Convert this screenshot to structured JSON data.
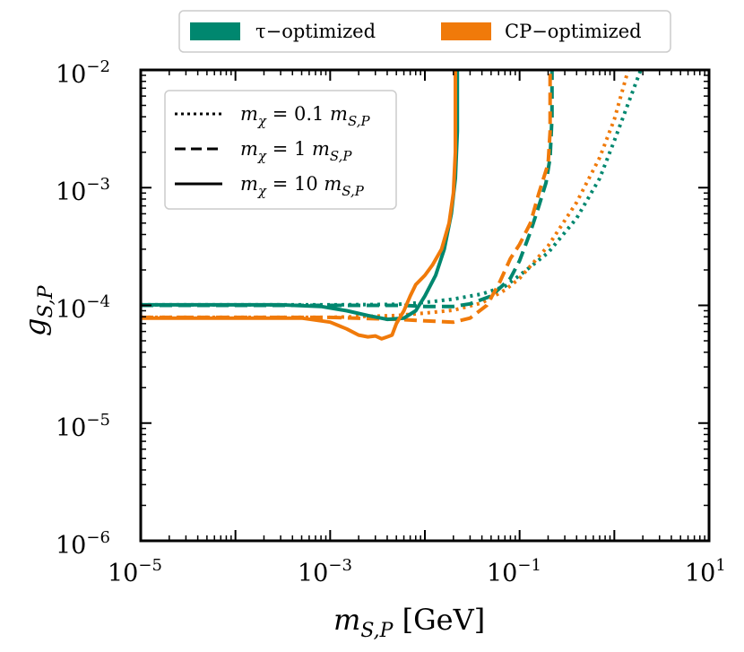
{
  "colors": {
    "tau": "#00876f",
    "cp": "#f07a0a",
    "axis": "#000000"
  },
  "chart_data": {
    "type": "line",
    "xscale": "log",
    "yscale": "log",
    "xlim": [
      1e-05,
      10
    ],
    "ylim": [
      1e-06,
      0.01
    ],
    "xlabel": "m_S,P [GeV]",
    "xlabel_parts": {
      "main": "m",
      "sub": "S,P",
      "unit": " [GeV]"
    },
    "ylabel": "g_S,P",
    "ylabel_parts": {
      "main": "g",
      "sub": "S,P"
    },
    "x_ticks": [
      {
        "base": "10",
        "exp": "−5"
      },
      {
        "base": "10",
        "exp": "−3"
      },
      {
        "base": "10",
        "exp": "−1"
      },
      {
        "base": "10",
        "exp": "1"
      }
    ],
    "y_ticks": [
      {
        "base": "10",
        "exp": "−2"
      },
      {
        "base": "10",
        "exp": "−3"
      },
      {
        "base": "10",
        "exp": "−4"
      },
      {
        "base": "10",
        "exp": "−5"
      },
      {
        "base": "10",
        "exp": "−6"
      }
    ],
    "color_legend": [
      {
        "label": "τ−optimized",
        "color_key": "tau"
      },
      {
        "label": "CP−optimized",
        "color_key": "cp"
      }
    ],
    "style_legend": [
      {
        "label_pre": "m",
        "label_sub": "χ",
        "label_mid": " = 0.1 ",
        "label_post": "m",
        "label_post_sub": "S,P",
        "dash": "dotted"
      },
      {
        "label_pre": "m",
        "label_sub": "χ",
        "label_mid": " = 1 ",
        "label_post": "m",
        "label_post_sub": "S,P",
        "dash": "dashed"
      },
      {
        "label_pre": "m",
        "label_sub": "χ",
        "label_mid": " = 10 ",
        "label_post": "m",
        "label_post_sub": "S,P",
        "dash": "solid"
      }
    ],
    "series": [
      {
        "name": "τ-optimized, m_χ = 0.1 m_S,P",
        "color_key": "tau",
        "dash": "dotted",
        "points": [
          [
            1e-05,
            0.000101
          ],
          [
            0.001,
            0.000101
          ],
          [
            0.005,
            0.000102
          ],
          [
            0.01,
            0.000106
          ],
          [
            0.02,
            0.000113
          ],
          [
            0.04,
            0.000125
          ],
          [
            0.07,
            0.000145
          ],
          [
            0.1,
            0.00018
          ],
          [
            0.2,
            0.00028
          ],
          [
            0.4,
            0.00055
          ],
          [
            0.7,
            0.0012
          ],
          [
            1.0,
            0.0025
          ],
          [
            1.5,
            0.006
          ],
          [
            1.9,
            0.01
          ]
        ]
      },
      {
        "name": "CP-optimized, m_χ = 0.1 m_S,P",
        "color_key": "cp",
        "dash": "dotted",
        "points": [
          [
            1e-05,
            7.9e-05
          ],
          [
            0.001,
            7.9e-05
          ],
          [
            0.005,
            8.2e-05
          ],
          [
            0.01,
            8.6e-05
          ],
          [
            0.02,
            9.1e-05
          ],
          [
            0.04,
            0.000105
          ],
          [
            0.07,
            0.000135
          ],
          [
            0.1,
            0.00017
          ],
          [
            0.2,
            0.00032
          ],
          [
            0.4,
            0.00075
          ],
          [
            0.7,
            0.0018
          ],
          [
            1.0,
            0.0038
          ],
          [
            1.4,
            0.01
          ]
        ]
      },
      {
        "name": "τ-optimized, m_χ = 1 m_S,P",
        "color_key": "tau",
        "dash": "dashed",
        "points": [
          [
            1e-05,
            0.0001
          ],
          [
            0.001,
            0.0001
          ],
          [
            0.006,
            0.0001
          ],
          [
            0.01,
            9.8e-05
          ],
          [
            0.02,
            9.8e-05
          ],
          [
            0.03,
            0.000103
          ],
          [
            0.05,
            0.00012
          ],
          [
            0.08,
            0.00017
          ],
          [
            0.1,
            0.00024
          ],
          [
            0.13,
            0.00042
          ],
          [
            0.16,
            0.0007
          ],
          [
            0.19,
            0.0011
          ],
          [
            0.21,
            0.0018
          ],
          [
            0.22,
            0.004
          ],
          [
            0.22,
            0.01
          ]
        ]
      },
      {
        "name": "CP-optimized, m_χ = 1 m_S,P",
        "color_key": "cp",
        "dash": "dashed",
        "points": [
          [
            1e-05,
            7.9e-05
          ],
          [
            0.001,
            7.9e-05
          ],
          [
            0.005,
            7.6e-05
          ],
          [
            0.01,
            7.4e-05
          ],
          [
            0.02,
            7.2e-05
          ],
          [
            0.03,
            7.8e-05
          ],
          [
            0.045,
            0.0001
          ],
          [
            0.06,
            0.00015
          ],
          [
            0.08,
            0.00025
          ],
          [
            0.1,
            0.00033
          ],
          [
            0.13,
            0.0005
          ],
          [
            0.16,
            0.0009
          ],
          [
            0.2,
            0.0016
          ],
          [
            0.21,
            0.003
          ],
          [
            0.21,
            0.01
          ]
        ]
      },
      {
        "name": "τ-optimized, m_χ = 10 m_S,P",
        "color_key": "tau",
        "dash": "solid",
        "points": [
          [
            1e-05,
            0.000101
          ],
          [
            0.0003,
            0.000101
          ],
          [
            0.0008,
            9.8e-05
          ],
          [
            0.0015,
            9e-05
          ],
          [
            0.0025,
            8.2e-05
          ],
          [
            0.004,
            7.6e-05
          ],
          [
            0.006,
            7.8e-05
          ],
          [
            0.008,
            9e-05
          ],
          [
            0.01,
            0.00012
          ],
          [
            0.013,
            0.00018
          ],
          [
            0.016,
            0.0003
          ],
          [
            0.019,
            0.0006
          ],
          [
            0.021,
            0.0012
          ],
          [
            0.022,
            0.003
          ],
          [
            0.022,
            0.01
          ]
        ]
      },
      {
        "name": "CP-optimized, m_χ = 10 m_S,P",
        "color_key": "cp",
        "dash": "solid",
        "points": [
          [
            1e-05,
            7.8e-05
          ],
          [
            0.0005,
            7.8e-05
          ],
          [
            0.001,
            7.2e-05
          ],
          [
            0.0015,
            6.3e-05
          ],
          [
            0.002,
            5.6e-05
          ],
          [
            0.0025,
            5.4e-05
          ],
          [
            0.003,
            5.5e-05
          ],
          [
            0.0035,
            5.2e-05
          ],
          [
            0.004,
            5.4e-05
          ],
          [
            0.0045,
            5.6e-05
          ],
          [
            0.005,
            7e-05
          ],
          [
            0.006,
            9e-05
          ],
          [
            0.007,
            0.00012
          ],
          [
            0.008,
            0.00015
          ],
          [
            0.01,
            0.00018
          ],
          [
            0.012,
            0.00022
          ],
          [
            0.015,
            0.0003
          ],
          [
            0.018,
            0.0005
          ],
          [
            0.02,
            0.0009
          ],
          [
            0.021,
            0.002
          ],
          [
            0.021,
            0.01
          ]
        ]
      }
    ]
  }
}
